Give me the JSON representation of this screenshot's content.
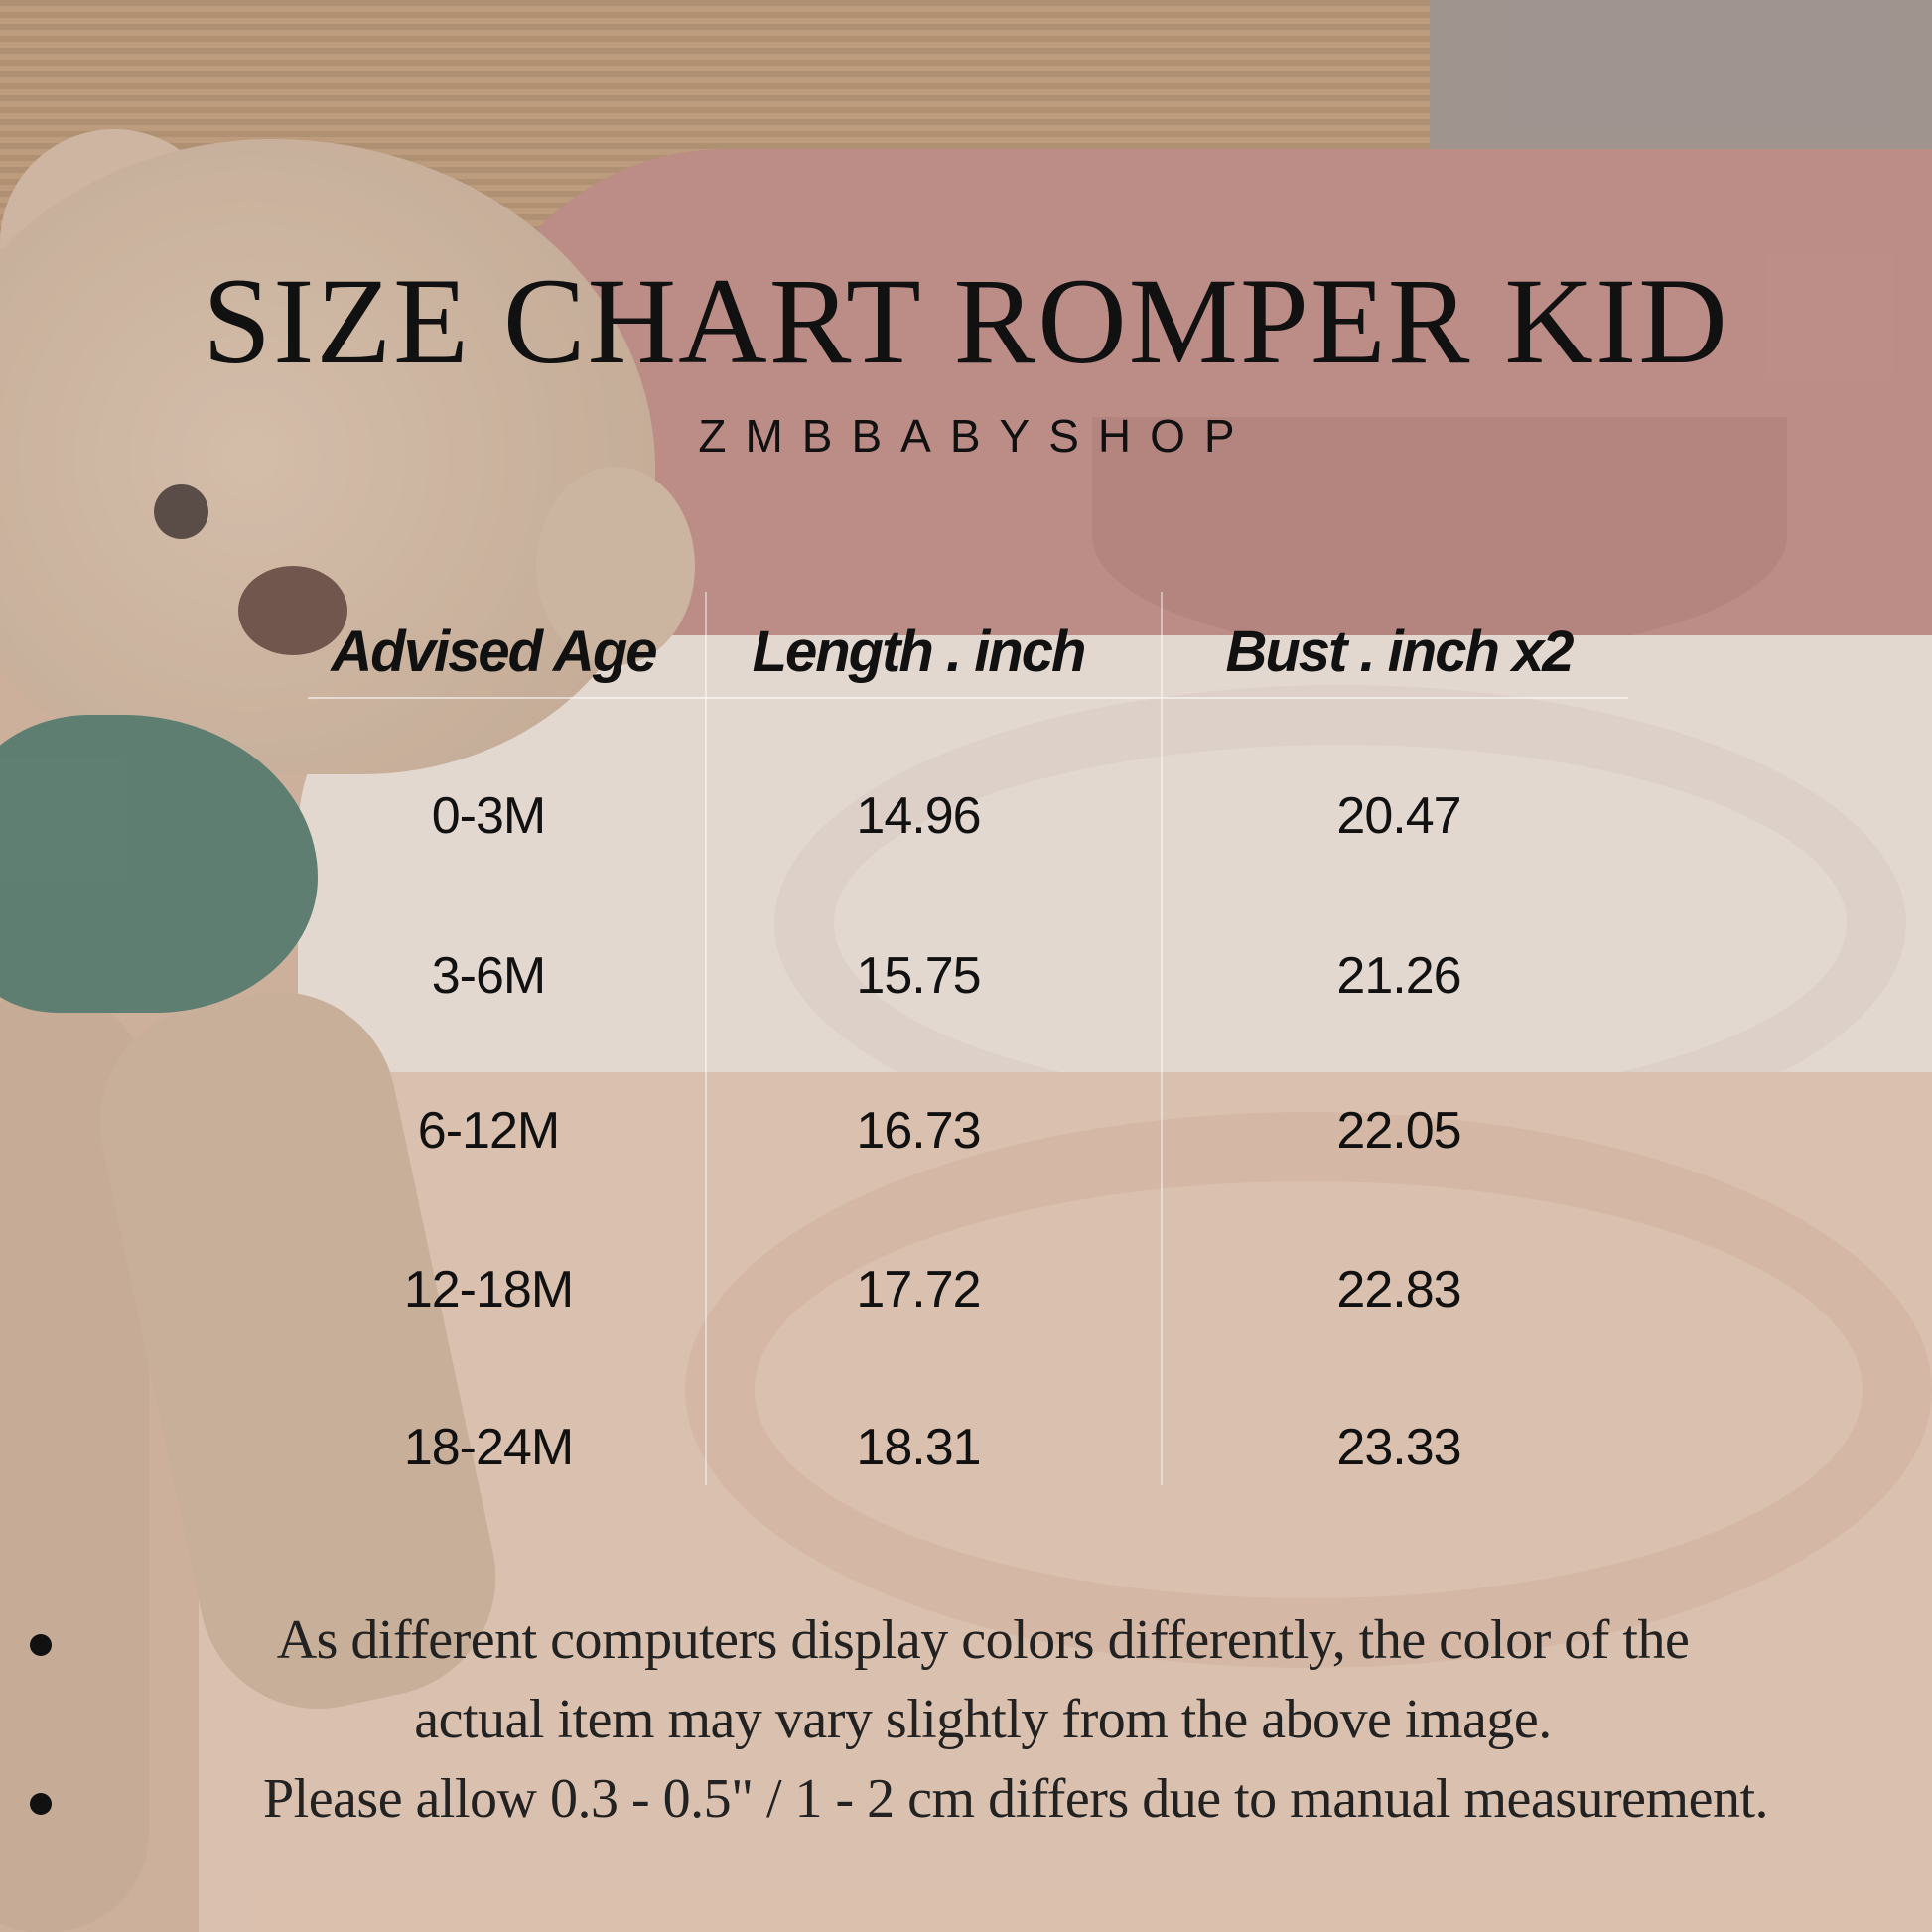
{
  "title": "SIZE CHART ROMPER KID",
  "brand": "ZMBBABYSHOP",
  "table": {
    "headers": [
      "Advised Age",
      "Length . inch",
      "Bust . inch x2"
    ],
    "rows": [
      [
        "0-3M",
        "14.96",
        "20.47"
      ],
      [
        "3-6M",
        "15.75",
        "21.26"
      ],
      [
        "6-12M",
        "16.73",
        "22.05"
      ],
      [
        "12-18M",
        "17.72",
        "22.83"
      ],
      [
        "18-24M",
        "18.31",
        "23.33"
      ]
    ]
  },
  "notes": {
    "line1": "As different computers display colors differently, the color of the",
    "line1b": "actual item may vary slightly from the above image.",
    "line2": "Please allow 0.3 - 0.5\" / 1 - 2 cm differs due to manual measurement."
  }
}
